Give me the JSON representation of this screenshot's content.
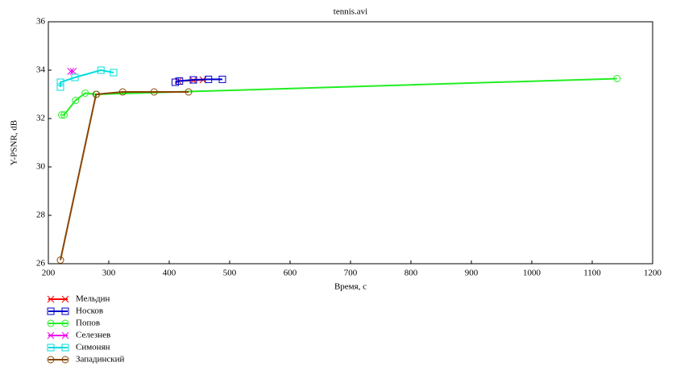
{
  "chart_data": {
    "type": "line",
    "title": "tennis.avi",
    "x_label": "Время, с",
    "y_label": "Y-PSNR, dB",
    "xlim": [
      200,
      1200
    ],
    "xticks": [
      200,
      300,
      400,
      500,
      600,
      700,
      800,
      900,
      1000,
      1100,
      1200
    ],
    "ylim": [
      26,
      36
    ],
    "yticks": [
      26,
      28,
      30,
      32,
      34,
      36
    ],
    "series": [
      {
        "name": "Мельдин",
        "color": "#ff0000",
        "marker": "x",
        "x": [
          415,
          440,
          456
        ],
        "values": [
          33.55,
          33.58,
          33.6
        ]
      },
      {
        "name": "Носков",
        "color": "#0000cc",
        "marker": "square",
        "x": [
          410,
          417,
          440,
          465,
          488
        ],
        "values": [
          33.5,
          33.55,
          33.6,
          33.62,
          33.62
        ]
      },
      {
        "name": "Попов",
        "color": "#22ee22",
        "marker": "circle",
        "x": [
          222,
          226,
          245,
          261,
          280,
          1141
        ],
        "values": [
          32.15,
          32.15,
          32.75,
          33.05,
          33.0,
          33.65
        ]
      },
      {
        "name": "Селезнев",
        "color": "#ee00ee",
        "marker": "x",
        "x": [
          237,
          241
        ],
        "values": [
          33.95,
          33.95
        ]
      },
      {
        "name": "Симонян",
        "color": "#00dddd",
        "marker": "square",
        "x": [
          220,
          220,
          244,
          287,
          308
        ],
        "values": [
          33.3,
          33.5,
          33.7,
          34.0,
          33.9
        ]
      },
      {
        "name": "Западинский",
        "color": "#884400",
        "marker": "circle",
        "x": [
          220,
          279,
          323,
          375,
          432
        ],
        "values": [
          26.15,
          33.0,
          33.1,
          33.1,
          33.1
        ]
      }
    ]
  }
}
